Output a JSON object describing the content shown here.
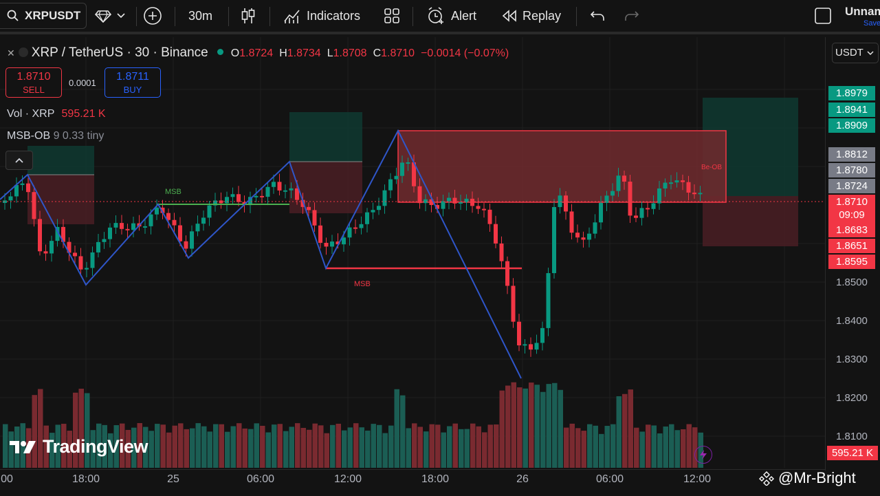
{
  "toolbar": {
    "symbol": "XRPUSDT",
    "interval": "30m",
    "indicators_label": "Indicators",
    "alert_label": "Alert",
    "replay_label": "Replay",
    "layout_name": "Unnam",
    "save_label": "Save"
  },
  "legend": {
    "symbol_title": "XRP / TetherUS · 30 · Binance",
    "o_label": "O",
    "o_val": "1.8724",
    "h_label": "H",
    "h_val": "1.8734",
    "l_label": "L",
    "l_val": "1.8708",
    "c_label": "C",
    "c_val": "1.8710",
    "change": "−0.0014 (−0.07%)",
    "sell_price": "1.8710",
    "sell_label": "SELL",
    "spread": "0.0001",
    "buy_price": "1.8711",
    "buy_label": "BUY",
    "vol_label": "Vol · XRP",
    "vol_value": "595.21 K",
    "msb_ob_label": "MSB-OB",
    "msb_ob_params": "9 0.33 tiny"
  },
  "currency": "USDT",
  "price_axis": {
    "ticks": [
      "1.8500",
      "1.8400",
      "1.8300",
      "1.8200",
      "1.8100"
    ],
    "tags": [
      {
        "text": "1.8979",
        "color": "#089981"
      },
      {
        "text": "1.8941",
        "color": "#089981"
      },
      {
        "text": "1.8909",
        "color": "#089981"
      },
      {
        "text": "1.8812",
        "color": "#787b86"
      },
      {
        "text": "1.8780",
        "color": "#787b86"
      },
      {
        "text": "1.8724",
        "color": "#787b86"
      },
      {
        "text": "1.8683",
        "color": "#f23645"
      },
      {
        "text": "1.8651",
        "color": "#f23645"
      },
      {
        "text": "1.8595",
        "color": "#f23645"
      }
    ],
    "current_price": "1.8710",
    "countdown": "09:09",
    "volume_tag": "595.21 K"
  },
  "time_axis": [
    "00",
    "18:00",
    "25",
    "06:00",
    "12:00",
    "18:00",
    "26",
    "06:00",
    "12:00"
  ],
  "annotations": {
    "msb_green": "MSB",
    "msb_red": "MSB",
    "be_ob": "Be-OB"
  },
  "brand": {
    "logo_text": "TradingView",
    "watermark": "@Mr-Bright"
  },
  "colors": {
    "up": "#089981",
    "down": "#f23645",
    "accent": "#2962ff"
  }
}
